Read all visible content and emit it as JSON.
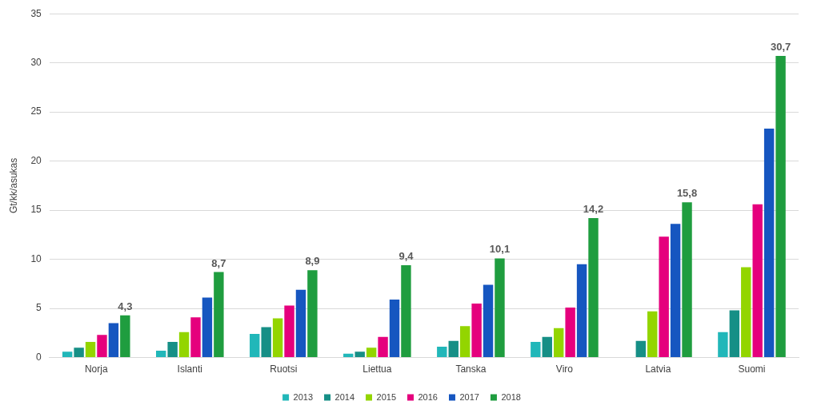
{
  "chart_data": {
    "type": "bar",
    "y_label": "Gt/kk/asukas",
    "categories": [
      "Norja",
      "Islanti",
      "Ruotsi",
      "Liettua",
      "Tanska",
      "Viro",
      "Latvia",
      "Suomi"
    ],
    "series": [
      {
        "name": "2013",
        "color": "#21b7b9",
        "values": [
          0.6,
          0.7,
          2.4,
          0.4,
          1.1,
          1.6,
          null,
          2.6
        ]
      },
      {
        "name": "2014",
        "color": "#168f86",
        "values": [
          1.0,
          1.6,
          3.1,
          0.6,
          1.7,
          2.1,
          1.7,
          4.8
        ]
      },
      {
        "name": "2015",
        "color": "#93d500",
        "values": [
          1.6,
          2.6,
          4.0,
          1.0,
          3.2,
          3.0,
          4.7,
          9.2
        ]
      },
      {
        "name": "2016",
        "color": "#e5007d",
        "values": [
          2.3,
          4.1,
          5.3,
          2.1,
          5.5,
          5.1,
          12.3,
          15.6
        ]
      },
      {
        "name": "2017",
        "color": "#1656c0",
        "values": [
          3.5,
          6.1,
          6.9,
          5.9,
          7.4,
          9.5,
          13.6,
          23.3
        ]
      },
      {
        "name": "2018",
        "color": "#1f9d3f",
        "values": [
          4.3,
          8.7,
          8.9,
          9.4,
          10.1,
          14.2,
          15.8,
          30.7
        ],
        "data_labels": true,
        "value_labels": [
          "4,3",
          "8,7",
          "8,9",
          "9,4",
          "10,1",
          "14,2",
          "15,8",
          "30,7"
        ]
      }
    ],
    "ylim": [
      0,
      35
    ],
    "yticks": [
      0,
      5,
      10,
      15,
      20,
      25,
      30,
      35
    ],
    "grid": true,
    "legend": "bottom"
  }
}
